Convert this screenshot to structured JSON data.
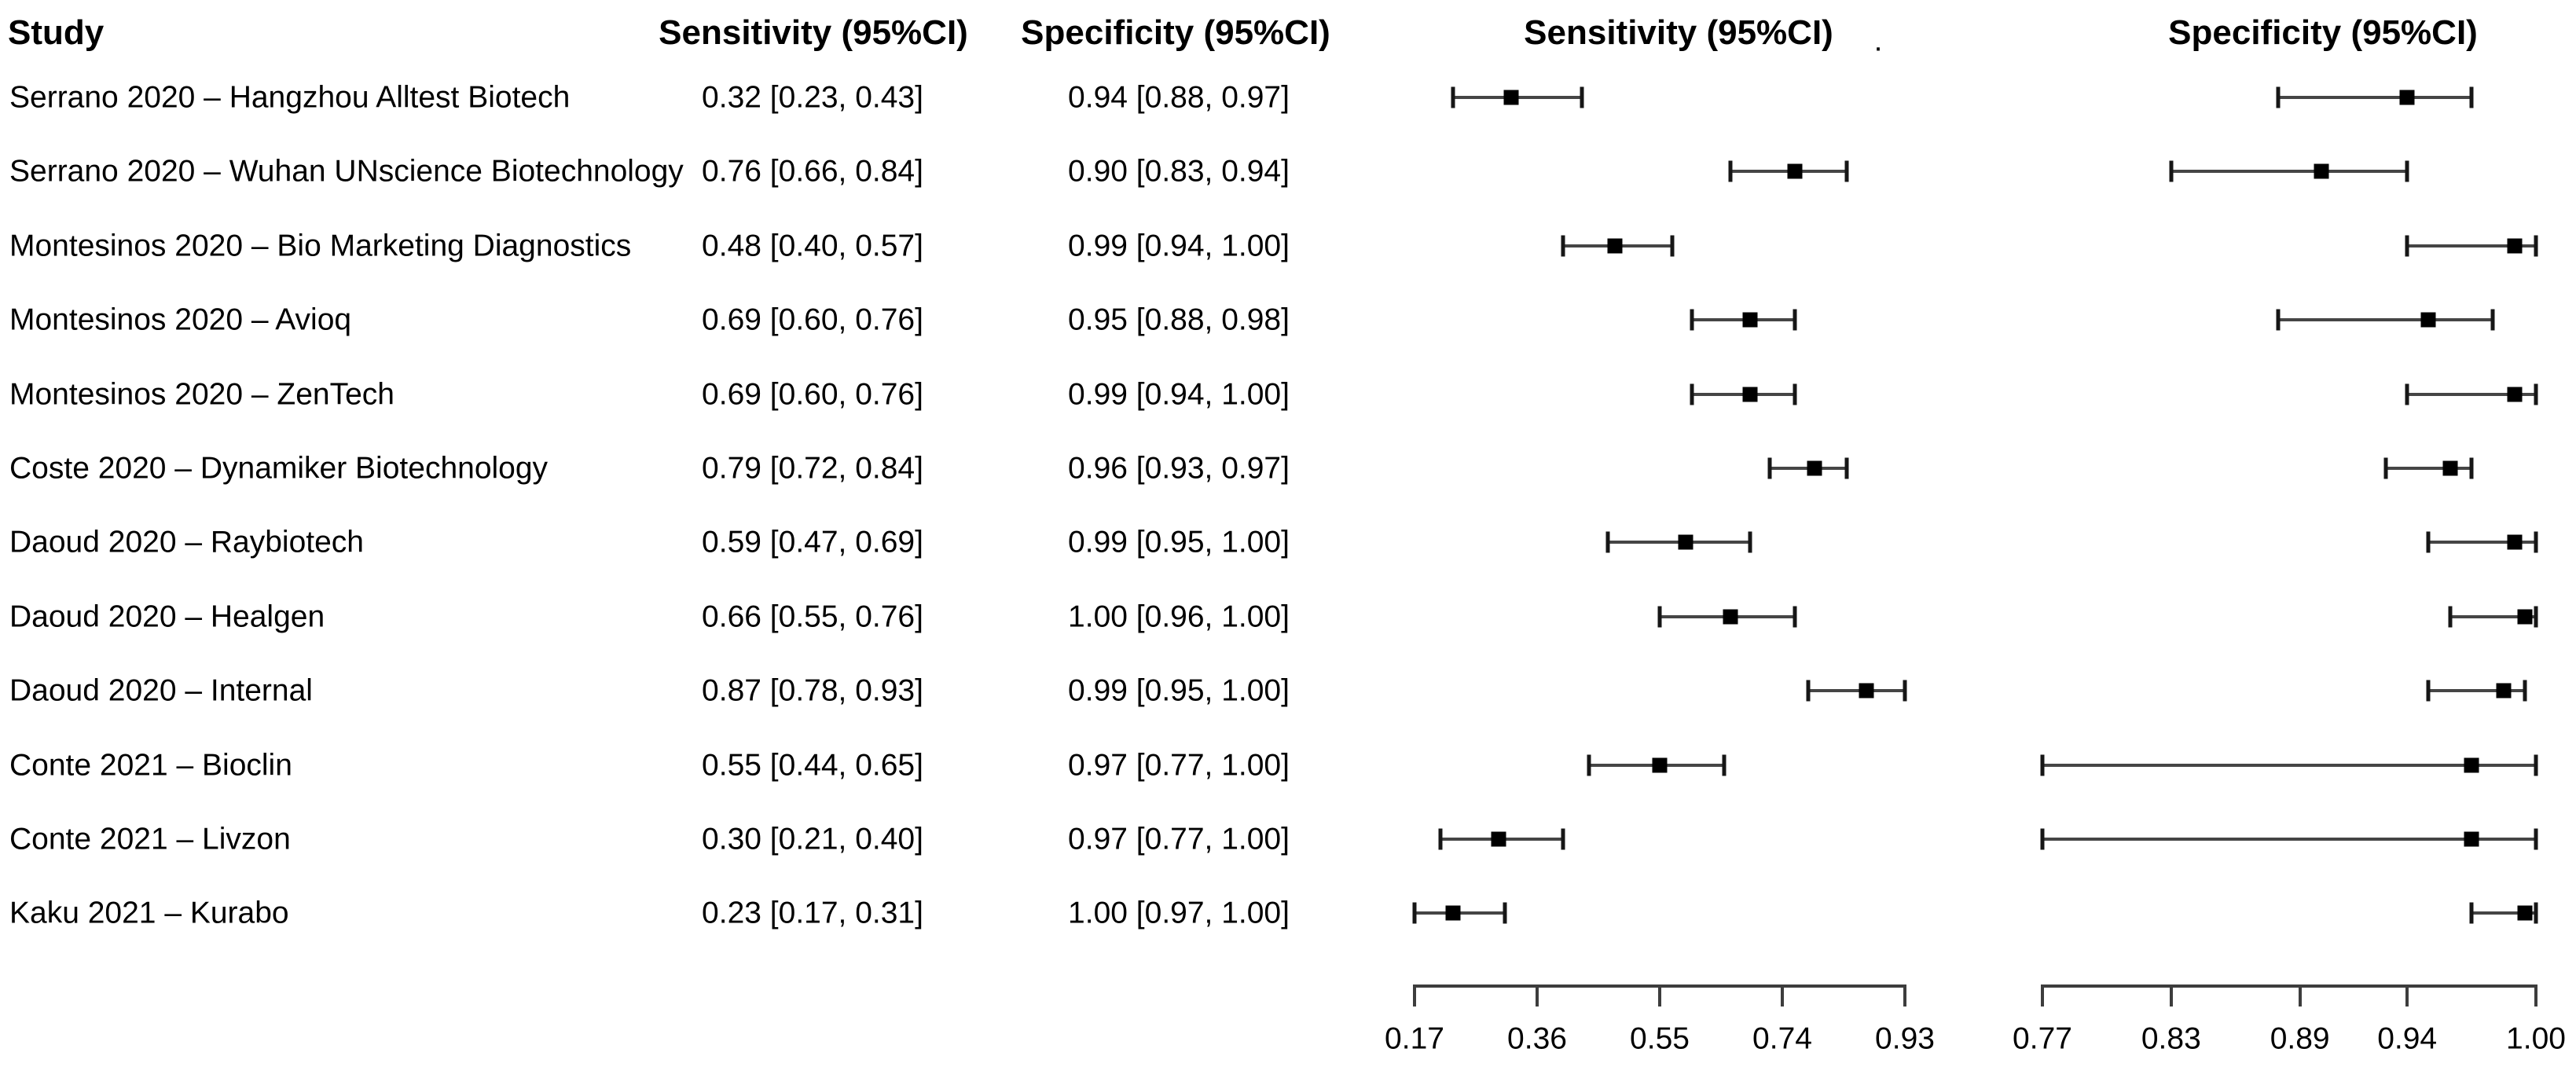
{
  "header": {
    "study": "Study",
    "sensitivity_column": "Sensitivity (95%CI)",
    "specificity_column": "Specificity (95%CI)",
    "sensitivity_plot": "Sensitivity (95%CI)",
    "specificity_plot": "Specificity (95%CI)",
    "stray_dot": "."
  },
  "colors": {
    "background": "#ffffff",
    "text": "#000000",
    "ci_line": "#454545",
    "ci_cap": "#161616",
    "marker": "#000000",
    "axis": "#3d3d3d"
  },
  "chart_data": {
    "type": "forest",
    "title": "",
    "columns": [
      "Study",
      "Sensitivity (95%CI)",
      "Specificity (95%CI)"
    ],
    "sensitivity_axis": {
      "min": 0.17,
      "max": 0.93,
      "ticks": [
        "0.17",
        "0.36",
        "0.55",
        "0.74",
        "0.93"
      ]
    },
    "specificity_axis": {
      "min": 0.77,
      "max": 1.0,
      "ticks": [
        "0.77",
        "0.83",
        "0.89",
        "0.94",
        "1.00"
      ]
    },
    "studies": [
      {
        "name": "Serrano 2020 – Hangzhou Alltest Biotech",
        "sensitivity_label": "0.32 [0.23, 0.43]",
        "specificity_label": "0.94 [0.88, 0.97]",
        "sens": {
          "est": 0.32,
          "lo": 0.23,
          "hi": 0.43
        },
        "spec": {
          "est": 0.94,
          "lo": 0.88,
          "hi": 0.97
        }
      },
      {
        "name": "Serrano 2020 – Wuhan UNscience Biotechnology",
        "sensitivity_label": "0.76 [0.66, 0.84]",
        "specificity_label": "0.90 [0.83, 0.94]",
        "sens": {
          "est": 0.76,
          "lo": 0.66,
          "hi": 0.84
        },
        "spec": {
          "est": 0.9,
          "lo": 0.83,
          "hi": 0.94
        }
      },
      {
        "name": "Montesinos 2020 – Bio Marketing Diagnostics",
        "sensitivity_label": "0.48 [0.40, 0.57]",
        "specificity_label": "0.99 [0.94, 1.00]",
        "sens": {
          "est": 0.48,
          "lo": 0.4,
          "hi": 0.57
        },
        "spec": {
          "est": 0.99,
          "lo": 0.94,
          "hi": 1.0
        }
      },
      {
        "name": "Montesinos 2020 – Avioq",
        "sensitivity_label": "0.69 [0.60, 0.76]",
        "specificity_label": "0.95 [0.88, 0.98]",
        "sens": {
          "est": 0.69,
          "lo": 0.6,
          "hi": 0.76
        },
        "spec": {
          "est": 0.95,
          "lo": 0.88,
          "hi": 0.98
        }
      },
      {
        "name": "Montesinos 2020 – ZenTech",
        "sensitivity_label": "0.69 [0.60, 0.76]",
        "specificity_label": "0.99 [0.94, 1.00]",
        "sens": {
          "est": 0.69,
          "lo": 0.6,
          "hi": 0.76
        },
        "spec": {
          "est": 0.99,
          "lo": 0.94,
          "hi": 1.0
        }
      },
      {
        "name": "Coste 2020 – Dynamiker Biotechnology",
        "sensitivity_label": "0.79 [0.72, 0.84]",
        "specificity_label": "0.96 [0.93, 0.97]",
        "sens": {
          "est": 0.79,
          "lo": 0.72,
          "hi": 0.84
        },
        "spec": {
          "est": 0.96,
          "lo": 0.93,
          "hi": 0.97
        }
      },
      {
        "name": "Daoud 2020 – Raybiotech",
        "sensitivity_label": "0.59 [0.47, 0.69]",
        "specificity_label": "0.99 [0.95, 1.00]",
        "sens": {
          "est": 0.59,
          "lo": 0.47,
          "hi": 0.69
        },
        "spec": {
          "est": 0.99,
          "lo": 0.95,
          "hi": 1.0
        }
      },
      {
        "name": "Daoud 2020 – Healgen",
        "sensitivity_label": "0.66 [0.55, 0.76]",
        "specificity_label": "1.00 [0.96, 1.00]",
        "sens": {
          "est": 0.66,
          "lo": 0.55,
          "hi": 0.76
        },
        "spec": {
          "est": 0.995,
          "lo": 0.96,
          "hi": 1.0
        }
      },
      {
        "name": "Daoud 2020 – Internal",
        "sensitivity_label": "0.87 [0.78, 0.93]",
        "specificity_label": "0.99 [0.95, 1.00]",
        "sens": {
          "est": 0.87,
          "lo": 0.78,
          "hi": 0.93
        },
        "spec": {
          "est": 0.985,
          "lo": 0.95,
          "hi": 0.995
        }
      },
      {
        "name": "Conte 2021 – Bioclin",
        "sensitivity_label": "0.55 [0.44, 0.65]",
        "specificity_label": "0.97 [0.77, 1.00]",
        "sens": {
          "est": 0.55,
          "lo": 0.44,
          "hi": 0.65
        },
        "spec": {
          "est": 0.97,
          "lo": 0.77,
          "hi": 1.0
        }
      },
      {
        "name": "Conte 2021 – Livzon",
        "sensitivity_label": "0.30 [0.21, 0.40]",
        "specificity_label": "0.97 [0.77, 1.00]",
        "sens": {
          "est": 0.3,
          "lo": 0.21,
          "hi": 0.4
        },
        "spec": {
          "est": 0.97,
          "lo": 0.77,
          "hi": 1.0
        }
      },
      {
        "name": "Kaku 2021 – Kurabo",
        "sensitivity_label": "0.23 [0.17, 0.31]",
        "specificity_label": "1.00 [0.97, 1.00]",
        "sens": {
          "est": 0.23,
          "lo": 0.17,
          "hi": 0.31
        },
        "spec": {
          "est": 0.995,
          "lo": 0.97,
          "hi": 1.0
        }
      }
    ]
  }
}
